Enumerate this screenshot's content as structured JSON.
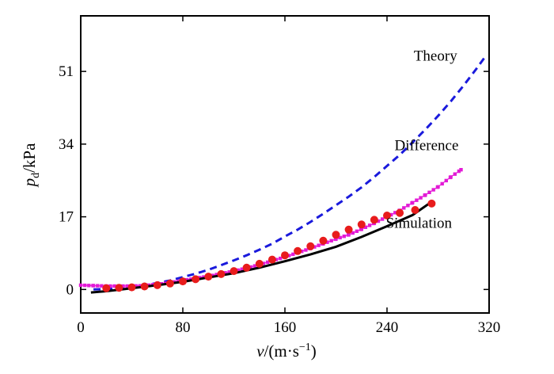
{
  "chart_data": {
    "type": "line",
    "title": "",
    "xlabel": {
      "main": "v",
      "rest": "/(m·s",
      "sup": "−1",
      "close": ")"
    },
    "ylabel": {
      "main": "p",
      "sub": "d",
      "rest": "/kPa"
    },
    "xlim": [
      0,
      320
    ],
    "ylim": [
      -5.5,
      64
    ],
    "xticks": [
      0,
      80,
      160,
      240,
      320
    ],
    "yticks": [
      0,
      17,
      34,
      51
    ],
    "grid": false,
    "legend": "none",
    "series": [
      {
        "key": "theory",
        "style": "dashed",
        "color": "#1a1adc",
        "x": [
          10,
          20,
          30,
          40,
          50,
          60,
          70,
          80,
          90,
          100,
          110,
          120,
          130,
          140,
          150,
          160,
          170,
          180,
          190,
          200,
          210,
          220,
          230,
          240,
          250,
          260,
          270,
          280,
          290,
          300,
          310,
          318
        ],
        "y": [
          0.0,
          0.1,
          0.3,
          0.6,
          1.0,
          1.5,
          2.1,
          2.9,
          3.7,
          4.6,
          5.7,
          6.8,
          8.0,
          9.3,
          10.7,
          12.4,
          14.0,
          15.8,
          17.7,
          19.7,
          21.7,
          23.9,
          26.3,
          28.9,
          31.5,
          34.4,
          37.4,
          40.6,
          44.0,
          47.7,
          51.6,
          54.9
        ]
      },
      {
        "key": "difference",
        "style": "squares",
        "color": "#e31ad6",
        "x": [
          0,
          10,
          20,
          30,
          40,
          50,
          60,
          70,
          80,
          90,
          100,
          110,
          120,
          130,
          140,
          150,
          160,
          170,
          180,
          190,
          200,
          210,
          220,
          230,
          240,
          250,
          260,
          270,
          280,
          290,
          298
        ],
        "y": [
          1.0,
          0.9,
          0.8,
          0.8,
          0.8,
          0.9,
          1.2,
          1.6,
          2.1,
          2.6,
          3.1,
          3.7,
          4.3,
          5.0,
          5.8,
          6.7,
          7.6,
          8.6,
          9.6,
          10.7,
          11.8,
          12.8,
          14.1,
          15.5,
          17.0,
          18.5,
          20.3,
          22.1,
          24.0,
          26.3,
          28.0
        ]
      },
      {
        "key": "fit",
        "style": "solid",
        "color": "#000000",
        "x": [
          8,
          20,
          40,
          60,
          80,
          100,
          120,
          140,
          160,
          180,
          200,
          220,
          240,
          260,
          275
        ],
        "y": [
          -0.7,
          -0.4,
          0.3,
          1.0,
          1.8,
          2.8,
          3.8,
          5.1,
          6.6,
          8.2,
          10.0,
          12.3,
          14.8,
          17.4,
          20.5
        ]
      },
      {
        "key": "simulation",
        "style": "points",
        "color": "#e81c1c",
        "x": [
          20,
          30,
          40,
          50,
          60,
          70,
          80,
          90,
          100,
          110,
          120,
          130,
          140,
          150,
          160,
          170,
          180,
          190,
          200,
          210,
          220,
          230,
          240,
          250,
          262,
          275
        ],
        "y": [
          0.3,
          0.4,
          0.5,
          0.7,
          1.0,
          1.4,
          1.9,
          2.4,
          3.0,
          3.6,
          4.3,
          5.1,
          6.0,
          7.0,
          8.0,
          9.0,
          10.1,
          11.4,
          12.8,
          14.0,
          15.2,
          16.3,
          17.3,
          17.9,
          18.6,
          20.1
        ]
      }
    ],
    "annotations": [
      {
        "key": "theory",
        "text": "Theory",
        "x": 278,
        "y": 53.5
      },
      {
        "key": "difference",
        "text": "Difference",
        "x": 271,
        "y": 32.6
      },
      {
        "key": "simulation",
        "text": "Simulation",
        "x": 265,
        "y": 14.4
      }
    ]
  }
}
